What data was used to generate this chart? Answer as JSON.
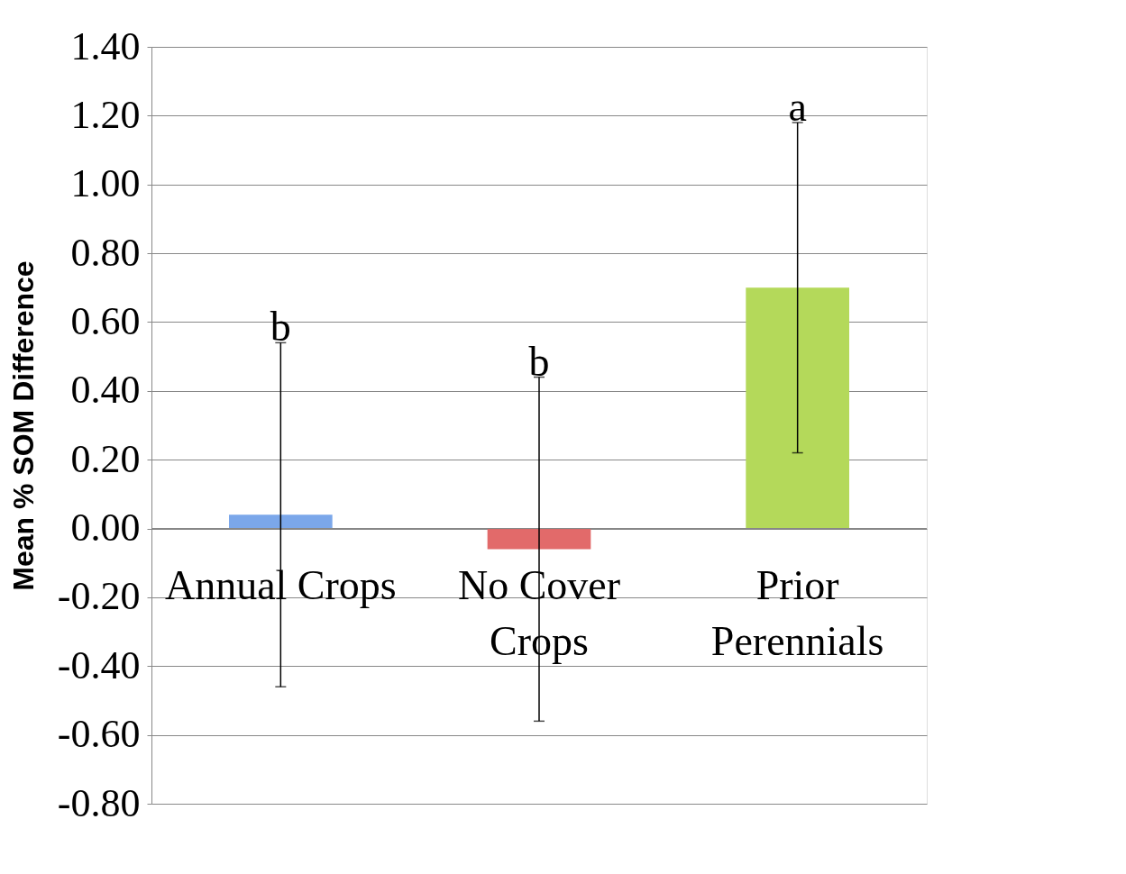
{
  "chart_data": {
    "type": "bar",
    "ylabel": "Mean % SOM Difference",
    "categories": [
      "Annual Crops",
      "No Cover Crops",
      "Prior Perennials"
    ],
    "values": [
      0.04,
      -0.06,
      0.7
    ],
    "colors": [
      "#7ba7ea",
      "#e26a6a",
      "#b4d95a"
    ],
    "errors": [
      0.5,
      0.5,
      0.48
    ],
    "ylim": [
      -0.8,
      1.4
    ],
    "yticks": [
      {
        "value": -0.8,
        "label": "-0.80"
      },
      {
        "value": -0.6,
        "label": "-0.60"
      },
      {
        "value": -0.4,
        "label": "-0.40"
      },
      {
        "value": -0.2,
        "label": "-0.20"
      },
      {
        "value": 0,
        "label": "0.00"
      },
      {
        "value": 0.2,
        "label": "0.20"
      },
      {
        "value": 0.4,
        "label": "0.40"
      },
      {
        "value": 0.6,
        "label": "0.60"
      },
      {
        "value": 0.8,
        "label": "0.80"
      },
      {
        "value": 1.0,
        "label": "1.00"
      },
      {
        "value": 1.2,
        "label": "1.20"
      },
      {
        "value": 1.4,
        "label": "1.40"
      }
    ],
    "annotations": [
      {
        "text": "b",
        "x": "Annual Crops",
        "y": 0.54
      },
      {
        "text": "b",
        "x": "No Cover Crops",
        "y": 0.44
      },
      {
        "text": "a",
        "x": "Prior Perennials",
        "y": 1.18
      }
    ],
    "grid": "y"
  }
}
